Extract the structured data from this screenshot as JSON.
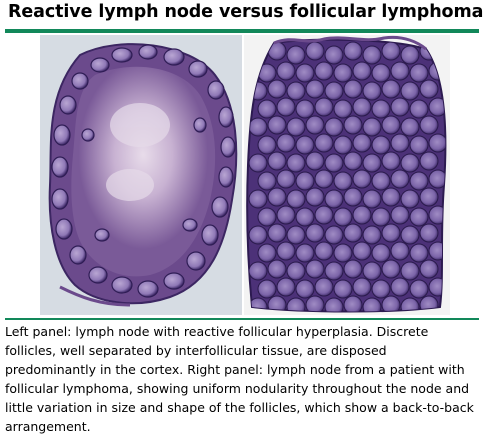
{
  "title": "Reactive lymph node versus follicular lymphoma",
  "caption": "Left panel: lymph node with reactive follicular hyperplasia. Discrete follicles, well separated by interfollicular tissue, are disposed predominantly in the cortex. Right panel: lymph node from a patient with follicular lymphoma, showing uniform nodularity throughout the node and little variation in size and shape of the follicles, which show a back-to-back arrangement.",
  "colors": {
    "accent_rule": "#12885a",
    "left_background": "#d6dce3",
    "right_background": "#f3f3f3",
    "tissue_purple": "#6e4a8e",
    "follicle_dark": "#3f2a6a",
    "follicle_light": "#9a86bd",
    "center_pale": "#d9c9e0"
  }
}
